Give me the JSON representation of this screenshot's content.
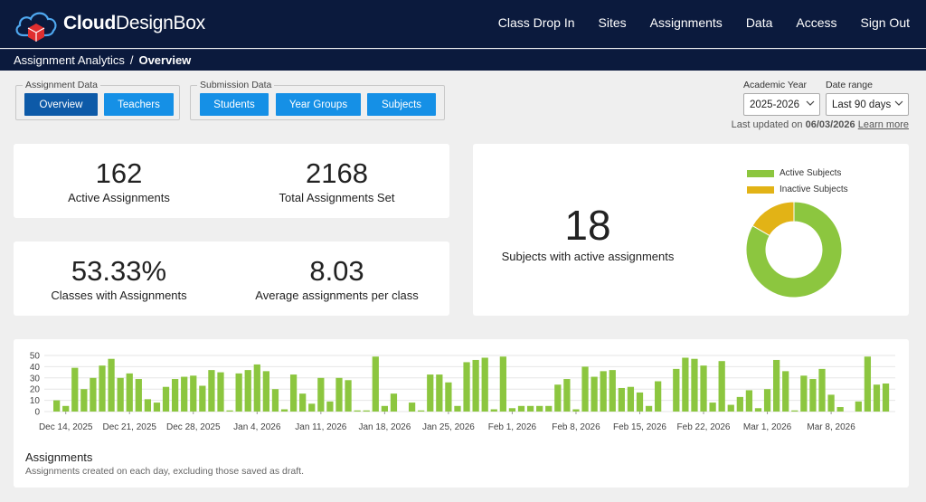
{
  "brand": {
    "bold": "Cloud",
    "light": "DesignBox"
  },
  "nav": [
    "Class Drop In",
    "Sites",
    "Assignments",
    "Data",
    "Access",
    "Sign Out"
  ],
  "breadcrumb": {
    "parent": "Assignment Analytics",
    "separator": "/",
    "current": "Overview"
  },
  "filters": {
    "assignment_group": {
      "legend": "Assignment Data",
      "buttons": [
        "Overview",
        "Teachers"
      ],
      "active": "Overview"
    },
    "submission_group": {
      "legend": "Submission Data",
      "buttons": [
        "Students",
        "Year Groups",
        "Subjects"
      ]
    }
  },
  "academic_year": {
    "label": "Academic Year",
    "value": "2025-2026"
  },
  "date_range": {
    "label": "Date range",
    "value": "Last 90 days"
  },
  "updated": {
    "prefix": "Last updated on",
    "date": "06/03/2026",
    "link": "Learn more"
  },
  "stats": [
    {
      "value": "162",
      "label": "Active Assignments"
    },
    {
      "value": "2168",
      "label": "Total Assignments Set"
    },
    {
      "value": "53.33%",
      "label": "Classes with Assignments"
    },
    {
      "value": "8.03",
      "label": "Average assignments per class"
    }
  ],
  "subjects": {
    "value": "18",
    "label": "Subjects with active assignments",
    "chart_data": {
      "type": "pie",
      "variant": "donut",
      "labels": [
        "Active Subjects",
        "Inactive Subjects"
      ],
      "values": [
        15,
        3
      ],
      "colors": [
        "#8cc63f",
        "#e2b316"
      ],
      "legend_position": "top"
    }
  },
  "assignments_chart": {
    "title": "Assignments",
    "subtitle": "Assignments created on each day, excluding those saved as draft.",
    "color": "#8cc63f",
    "chart_data": {
      "type": "bar",
      "x_tick_labels": [
        "Dec 14, 2025",
        "Dec 21, 2025",
        "Dec 28, 2025",
        "Jan 4, 2026",
        "Jan 11, 2026",
        "Jan 18, 2026",
        "Jan 25, 2026",
        "Feb 1, 2026",
        "Feb 8, 2026",
        "Feb 15, 2026",
        "Feb 22, 2026",
        "Mar 1, 2026",
        "Mar 8, 2026"
      ],
      "y_ticks": [
        0,
        10,
        20,
        30,
        40,
        50
      ],
      "ylim": [
        0,
        50
      ],
      "grid": true,
      "start_date": "2025-12-13",
      "values": [
        10,
        5,
        39,
        20,
        30,
        41,
        47,
        30,
        34,
        29,
        11,
        8,
        22,
        29,
        31,
        32,
        23,
        37,
        35,
        1,
        34,
        37,
        42,
        36,
        20,
        2,
        33,
        16,
        7,
        30,
        9,
        30,
        28,
        1,
        1,
        49,
        5,
        16,
        0,
        8,
        1,
        33,
        33,
        26,
        5,
        44,
        46,
        48,
        2,
        49,
        3,
        5,
        5,
        5,
        5,
        24,
        29,
        2,
        40,
        31,
        36,
        37,
        21,
        22,
        17,
        5,
        27,
        0,
        38,
        48,
        47,
        41,
        8,
        45,
        6,
        13,
        19,
        3,
        20,
        46,
        36,
        1,
        32,
        29,
        38,
        15,
        4,
        0,
        9,
        49,
        24,
        25
      ]
    }
  }
}
